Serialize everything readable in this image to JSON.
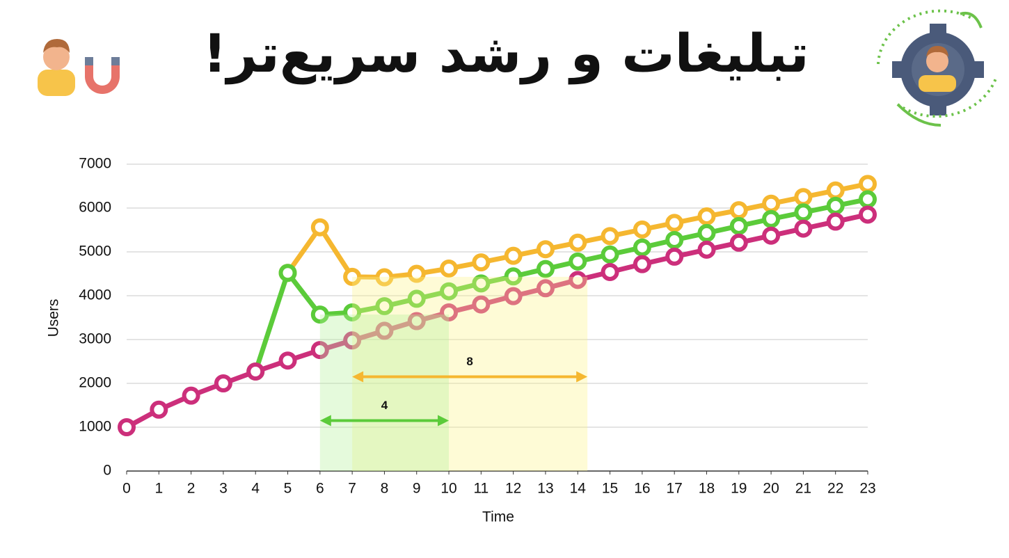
{
  "chart_data": {
    "type": "line",
    "title": "تبلیغات و رشد سریع‌تر!",
    "xlabel": "Time",
    "ylabel": "Users",
    "x": [
      0,
      1,
      2,
      3,
      4,
      5,
      6,
      7,
      8,
      9,
      10,
      11,
      12,
      13,
      14,
      15,
      16,
      17,
      18,
      19,
      20,
      21,
      22,
      23
    ],
    "xlim": [
      0,
      23
    ],
    "xticks": [
      0,
      1,
      2,
      3,
      4,
      5,
      6,
      7,
      8,
      9,
      10,
      11,
      12,
      13,
      14,
      15,
      16,
      17,
      18,
      19,
      20,
      21,
      22,
      23
    ],
    "ylim": [
      0,
      7000
    ],
    "yticks": [
      0,
      1000,
      2000,
      3000,
      4000,
      5000,
      6000,
      7000
    ],
    "grid": true,
    "series": [
      {
        "color": "#f5b730",
        "values": [
          null,
          null,
          null,
          null,
          null,
          4520,
          5560,
          4430,
          4420,
          4500,
          4620,
          4760,
          4910,
          5060,
          5210,
          5360,
          5510,
          5660,
          5810,
          5950,
          6100,
          6250,
          6400,
          6550
        ]
      },
      {
        "color": "#5bcb3a",
        "values": [
          null,
          null,
          null,
          null,
          2270,
          4520,
          3570,
          3620,
          3760,
          3930,
          4100,
          4280,
          4440,
          4610,
          4780,
          4940,
          5100,
          5270,
          5430,
          5590,
          5750,
          5900,
          6050,
          6200
        ]
      },
      {
        "color": "#cc2f7b",
        "values": [
          1000,
          1400,
          1720,
          2000,
          2270,
          2520,
          2760,
          2980,
          3200,
          3420,
          3620,
          3800,
          3990,
          4170,
          4360,
          4540,
          4720,
          4890,
          5050,
          5210,
          5370,
          5530,
          5690,
          5850
        ]
      }
    ],
    "annotations": [
      {
        "text": "8",
        "color": "#f5b730",
        "shade_color": "#fbf48a",
        "x_range": [
          7,
          14.3
        ],
        "y": 2150,
        "shade_top": 4430
      },
      {
        "text": "4",
        "color": "#5bcb3a",
        "shade_color": "#b4f29a",
        "x_range": [
          6,
          10
        ],
        "y": 1150,
        "shade_top": 3570
      }
    ]
  }
}
